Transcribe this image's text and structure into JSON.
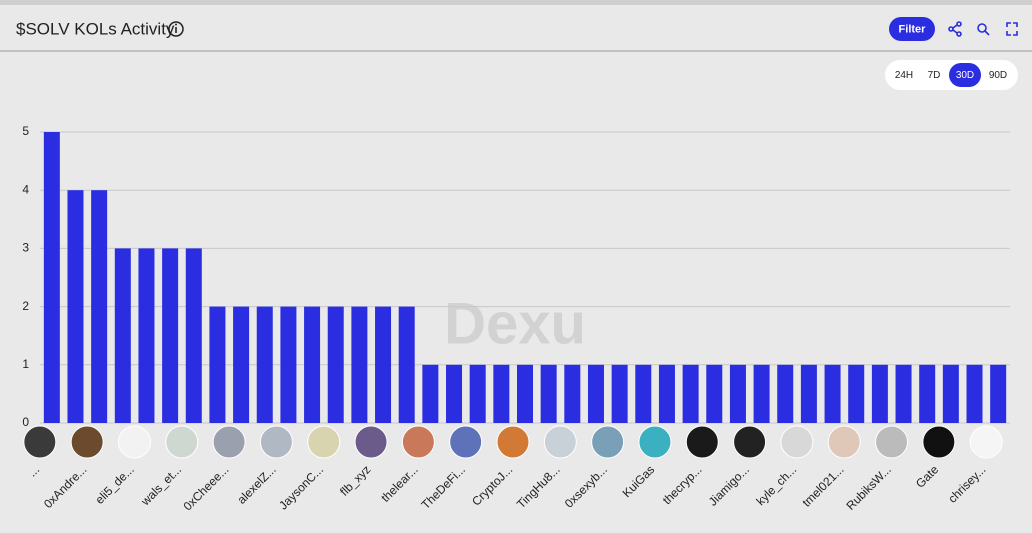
{
  "header": {
    "title": "$SOLV KOLs Activity",
    "filter": "Filter",
    "ranges": [
      "24H",
      "7D",
      "30D",
      "90D"
    ],
    "active_range": 2
  },
  "watermark": "Dexu",
  "chart_data": {
    "type": "bar",
    "color": "#2b2de0",
    "categories": [
      "...",
      null,
      "0xAndre...",
      null,
      "eli5_de...",
      null,
      "wals_et...",
      null,
      "0xCheee...",
      null,
      "alexelZ...",
      null,
      "JaysonC...",
      null,
      "flb_xyz",
      null,
      "thelear...",
      null,
      "TheDeFi...",
      null,
      "CryptoJ...",
      null,
      "TingHu8...",
      null,
      "0xsexyb...",
      null,
      "KuiGas",
      null,
      "thecryp...",
      null,
      "Jiamigo...",
      null,
      "kyle_ch...",
      null,
      "tmel021...",
      null,
      "RubiksW...",
      null,
      "Gate",
      null,
      "chrisey..."
    ],
    "values": [
      5,
      4,
      4,
      3,
      3,
      3,
      3,
      2,
      2,
      2,
      2,
      2,
      2,
      2,
      2,
      2,
      1,
      1,
      1,
      1,
      1,
      1,
      1,
      1,
      1,
      1,
      1,
      1,
      1,
      1,
      1,
      1,
      1,
      1,
      1,
      1,
      1,
      1,
      1,
      1,
      1
    ],
    "ylim": [
      0,
      5
    ],
    "yticks": [
      0,
      1,
      2,
      3,
      4,
      5
    ],
    "grid": true
  }
}
